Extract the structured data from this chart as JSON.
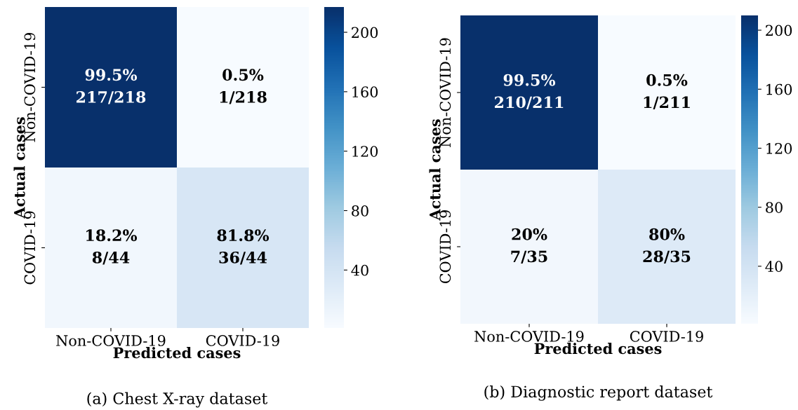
{
  "chart_data": [
    {
      "type": "heatmap",
      "title": "(a) Chest X-ray dataset",
      "xlabel": "Predicted cases",
      "ylabel": "Actual cases",
      "categories": [
        "Non-COVID-19",
        "COVID-19"
      ],
      "y_categories": [
        "Non-COVID-19",
        "COVID-19"
      ],
      "cells": [
        [
          217,
          1
        ],
        [
          8,
          36
        ]
      ],
      "cell_labels": [
        [
          "99.5%\n217/218",
          "0.5%\n1/218"
        ],
        [
          "18.2%\n8/44",
          "81.8%\n36/44"
        ]
      ],
      "clim": [
        1,
        217
      ],
      "cticks": [
        40,
        80,
        120,
        160,
        200
      ]
    },
    {
      "type": "heatmap",
      "title": "(b) Diagnostic report dataset",
      "xlabel": "Predicted cases",
      "ylabel": "Actual cases",
      "categories": [
        "Non-COVID-19",
        "COVID-19"
      ],
      "y_categories": [
        "Non-COVID-19",
        "COVID-19"
      ],
      "cells": [
        [
          210,
          1
        ],
        [
          7,
          28
        ]
      ],
      "cell_labels": [
        [
          "99.5%\n210/211",
          "0.5%\n1/211"
        ],
        [
          "20%\n7/35",
          "80%\n28/35"
        ]
      ],
      "clim": [
        1,
        210
      ],
      "cticks": [
        40,
        80,
        120,
        160,
        200
      ]
    }
  ]
}
